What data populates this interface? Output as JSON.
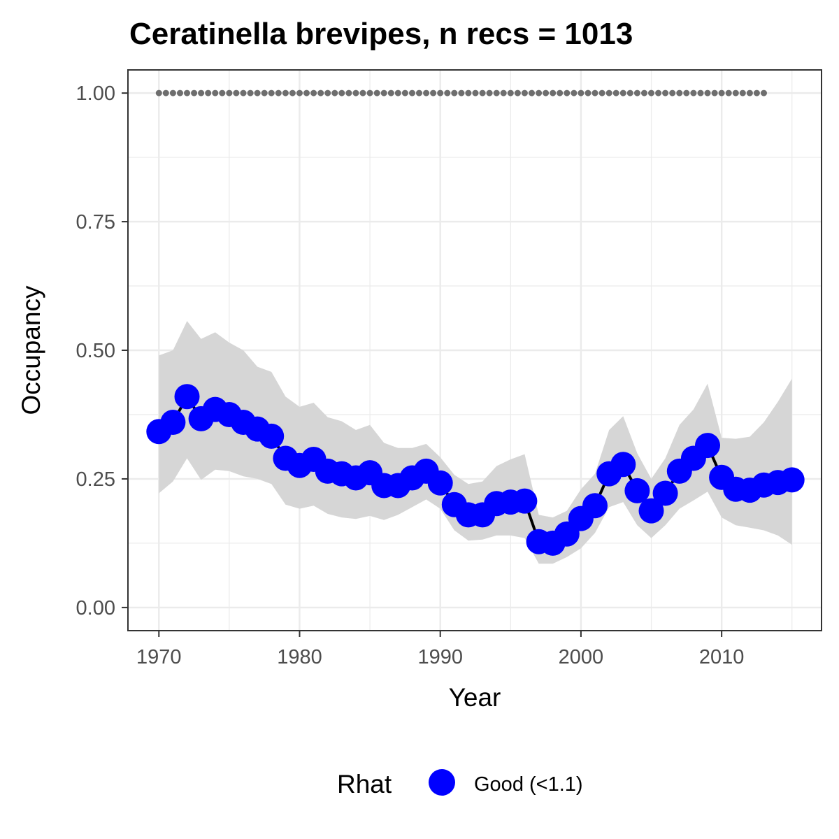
{
  "chart_data": {
    "type": "line",
    "title": "Ceratinella brevipes, n recs = 1013",
    "xlabel": "Year",
    "ylabel": "Occupancy",
    "xlim": [
      1967.8,
      1917.1
    ],
    "ylim": [
      -0.045,
      1.045
    ],
    "x_ticks": [
      "1970",
      "1980",
      "1990",
      "2000",
      "2010"
    ],
    "y_ticks": [
      "0.00",
      "0.25",
      "0.50",
      "0.75",
      "1.00"
    ],
    "grid": true,
    "legend": {
      "title": "Rhat",
      "position": "bottom",
      "entries": [
        "Good (<1.1)"
      ]
    },
    "x": [
      1970,
      1971,
      1972,
      1973,
      1974,
      1975,
      1976,
      1977,
      1978,
      1979,
      1980,
      1981,
      1982,
      1983,
      1984,
      1985,
      1986,
      1987,
      1988,
      1989,
      1990,
      1991,
      1992,
      1993,
      1994,
      1995,
      1996,
      1997,
      1998,
      1999,
      2000,
      2001,
      2002,
      2003,
      2004,
      2005,
      2006,
      2007,
      2008,
      2009,
      2010,
      2011,
      2012,
      2013,
      2014,
      2015
    ],
    "series": [
      {
        "values": [
          0.342,
          0.36,
          0.41,
          0.367,
          0.385,
          0.375,
          0.36,
          0.347,
          0.333,
          0.29,
          0.276,
          0.288,
          0.265,
          0.26,
          0.252,
          0.262,
          0.237,
          0.237,
          0.252,
          0.265,
          0.242,
          0.2,
          0.18,
          0.18,
          0.202,
          0.205,
          0.207,
          0.128,
          0.125,
          0.143,
          0.173,
          0.198,
          0.26,
          0.278,
          0.227,
          0.188,
          0.222,
          0.265,
          0.29,
          0.315,
          0.253,
          0.23,
          0.228,
          0.238,
          0.243,
          0.248
        ],
        "lower": [
          0.222,
          0.245,
          0.29,
          0.248,
          0.268,
          0.265,
          0.255,
          0.25,
          0.24,
          0.2,
          0.192,
          0.198,
          0.182,
          0.175,
          0.172,
          0.178,
          0.17,
          0.18,
          0.195,
          0.21,
          0.192,
          0.15,
          0.13,
          0.132,
          0.14,
          0.14,
          0.135,
          0.085,
          0.085,
          0.098,
          0.115,
          0.145,
          0.195,
          0.205,
          0.16,
          0.135,
          0.16,
          0.192,
          0.208,
          0.225,
          0.175,
          0.16,
          0.155,
          0.15,
          0.14,
          0.122
        ],
        "upper": [
          0.49,
          0.5,
          0.557,
          0.522,
          0.535,
          0.515,
          0.5,
          0.468,
          0.458,
          0.41,
          0.39,
          0.398,
          0.37,
          0.362,
          0.345,
          0.355,
          0.32,
          0.31,
          0.31,
          0.318,
          0.292,
          0.258,
          0.24,
          0.245,
          0.275,
          0.288,
          0.298,
          0.18,
          0.175,
          0.188,
          0.23,
          0.26,
          0.345,
          0.372,
          0.3,
          0.25,
          0.29,
          0.355,
          0.385,
          0.435,
          0.33,
          0.328,
          0.332,
          0.36,
          0.4,
          0.445
        ],
        "color": "#0000ff"
      }
    ],
    "reference_line": {
      "value": 1.0,
      "x_start": 1970,
      "x_end": 2013,
      "style": "dotted",
      "color": "#6e6e6e"
    },
    "colors": {
      "points": "#0000ff",
      "line": "#000000",
      "ribbon": "#d6d6d6",
      "grid": "#ebebeb",
      "panel_border": "#333333"
    }
  }
}
